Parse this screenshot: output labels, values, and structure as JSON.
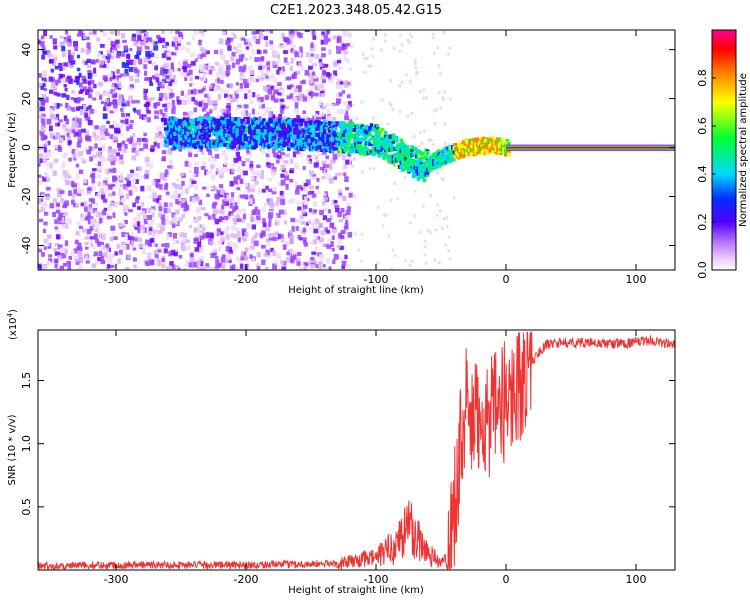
{
  "figure": {
    "title": "C2E1.2023.348.05.42.G15"
  },
  "chart_data": [
    {
      "type": "heatmap",
      "xlabel": "Height of straight line (km)",
      "ylabel": "Frequency (Hz)",
      "xlim": [
        -360,
        130
      ],
      "ylim": [
        -50,
        48
      ],
      "xticks": [
        -300,
        -200,
        -100,
        0,
        100
      ],
      "xtick_labels": [
        "-300",
        "-200",
        "-100",
        "0",
        "100"
      ],
      "yticks": [
        -40,
        -20,
        0,
        20,
        40
      ],
      "ytick_labels": [
        "-40",
        "-20",
        "0",
        "20",
        "40"
      ],
      "colorbar": {
        "label": "Normalized spectral amplitude",
        "range": [
          0,
          1
        ],
        "ticks": [
          0.0,
          0.2,
          0.4,
          0.6,
          0.8
        ],
        "tick_labels": [
          "0.0",
          "0.2",
          "0.4",
          "0.6",
          "0.8"
        ],
        "colormap": [
          "#ffffff",
          "#e8c8f8",
          "#7a00ff",
          "#0000ff",
          "#00e0ff",
          "#00ff00",
          "#ffff00",
          "#ff8000",
          "#ff0000",
          "#ff0090"
        ]
      },
      "signal_center_hz": [
        {
          "x": -360,
          "y": 5
        },
        {
          "x": -300,
          "y": 5
        },
        {
          "x": -260,
          "y": 6
        },
        {
          "x": -200,
          "y": 6
        },
        {
          "x": -150,
          "y": 5
        },
        {
          "x": -100,
          "y": 3
        },
        {
          "x": -80,
          "y": -3
        },
        {
          "x": -65,
          "y": -8
        },
        {
          "x": -50,
          "y": -4
        },
        {
          "x": -30,
          "y": 0
        },
        {
          "x": -10,
          "y": 1
        },
        {
          "x": 0,
          "y": 0
        },
        {
          "x": 130,
          "y": 0
        }
      ]
    },
    {
      "type": "line",
      "xlabel": "Height of straight line (km)",
      "ylabel": "SNR (10 * v/v)",
      "y_multiplier_label": "(x10",
      "y_multiplier_exp": "4",
      "y_multiplier_close": ")",
      "xlim": [
        -360,
        130
      ],
      "ylim": [
        0,
        1.9
      ],
      "xticks": [
        -300,
        -200,
        -100,
        0,
        100
      ],
      "xtick_labels": [
        "-300",
        "-200",
        "-100",
        "0",
        "100"
      ],
      "yticks": [
        0.5,
        1.0,
        1.5
      ],
      "ytick_labels": [
        "0.5",
        "1.0",
        "1.5"
      ],
      "line_color": "#ee3333",
      "series": [
        {
          "x": [
            -360,
            -300,
            -200,
            -130,
            -100,
            -85,
            -75,
            -70,
            -60,
            -50,
            -45,
            -40,
            -35,
            -30,
            -25,
            -20,
            -10,
            0,
            10,
            20,
            30,
            40,
            60,
            80,
            100,
            110,
            120,
            130
          ],
          "y": [
            0.03,
            0.04,
            0.04,
            0.05,
            0.1,
            0.2,
            0.35,
            0.28,
            0.15,
            0.05,
            0.1,
            0.5,
            1.0,
            1.3,
            1.1,
            1.25,
            1.2,
            1.35,
            1.5,
            1.65,
            1.78,
            1.8,
            1.8,
            1.79,
            1.8,
            1.82,
            1.8,
            1.78
          ]
        }
      ]
    }
  ]
}
